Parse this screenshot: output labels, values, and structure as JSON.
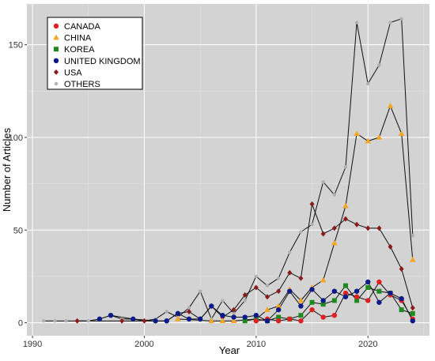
{
  "chart_data": {
    "type": "line",
    "title": "",
    "xlabel": "Year",
    "ylabel": "Number of Articles",
    "xlim": [
      1989.5,
      2025.5
    ],
    "ylim": [
      -7,
      172
    ],
    "x_ticks": [
      1990,
      2000,
      2010,
      2020
    ],
    "y_ticks": [
      0,
      50,
      100,
      150
    ],
    "grid": true,
    "legend_position": "top-left",
    "series": [
      {
        "name": "OTHERS",
        "color": "#b0b0b0",
        "marker": "circle-small",
        "x": [
          1991,
          1992,
          1993,
          1994,
          1995,
          1996,
          1997,
          1998,
          1999,
          2000,
          2001,
          2002,
          2003,
          2004,
          2005,
          2006,
          2007,
          2008,
          2009,
          2010,
          2011,
          2012,
          2013,
          2014,
          2015,
          2016,
          2017,
          2018,
          2019,
          2020,
          2021,
          2022,
          2023,
          2024
        ],
        "values": [
          1,
          1,
          1,
          1,
          1,
          2,
          4,
          2,
          2,
          1,
          2,
          6,
          3,
          8,
          17,
          2,
          12,
          5,
          12,
          25,
          20,
          24,
          38,
          49,
          53,
          76,
          69,
          84,
          162,
          129,
          139,
          162,
          164,
          47
        ]
      },
      {
        "name": "USA",
        "color": "#8b1a1a",
        "marker": "diamond",
        "x": [
          1994,
          1998,
          2000,
          2002,
          2003,
          2004,
          2005,
          2006,
          2007,
          2008,
          2009,
          2010,
          2011,
          2012,
          2013,
          2014,
          2015,
          2016,
          2017,
          2018,
          2019,
          2020,
          2021,
          2022,
          2023,
          2024
        ],
        "values": [
          1,
          1,
          1,
          1,
          5,
          6,
          2,
          9,
          3,
          7,
          15,
          19,
          14,
          17,
          27,
          24,
          64,
          48,
          51,
          56,
          53,
          51,
          51,
          41,
          29,
          8
        ]
      },
      {
        "name": "CHINA",
        "color": "#f5a623",
        "marker": "triangle",
        "x": [
          2003,
          2006,
          2007,
          2008,
          2010,
          2011,
          2012,
          2013,
          2014,
          2015,
          2016,
          2017,
          2018,
          2019,
          2020,
          2021,
          2022,
          2023,
          2024
        ],
        "values": [
          2,
          1,
          1,
          1,
          2,
          7,
          9,
          18,
          12,
          19,
          23,
          43,
          63,
          102,
          98,
          100,
          117,
          102,
          34
        ]
      },
      {
        "name": "KOREA",
        "color": "#1e8a1e",
        "marker": "square",
        "x": [
          2009,
          2010,
          2011,
          2012,
          2013,
          2014,
          2015,
          2016,
          2017,
          2018,
          2019,
          2020,
          2021,
          2022,
          2023,
          2024
        ],
        "values": [
          1,
          2,
          1,
          3,
          2,
          4,
          11,
          10,
          12,
          20,
          12,
          19,
          17,
          16,
          7,
          5
        ]
      },
      {
        "name": "CANADA",
        "color": "#e02020",
        "marker": "circle",
        "x": [
          2010,
          2011,
          2012,
          2013,
          2014,
          2015,
          2016,
          2017,
          2018,
          2019,
          2020,
          2021,
          2022,
          2023,
          2024
        ],
        "values": [
          1,
          2,
          1,
          2,
          1,
          7,
          3,
          4,
          16,
          14,
          12,
          22,
          15,
          12,
          2
        ]
      },
      {
        "name": "UNITED KINGDOM",
        "color": "#0a1a8a",
        "marker": "circle",
        "x": [
          1996,
          1997,
          1999,
          2001,
          2002,
          2003,
          2004,
          2005,
          2006,
          2007,
          2008,
          2009,
          2010,
          2011,
          2012,
          2013,
          2014,
          2015,
          2016,
          2017,
          2018,
          2019,
          2020,
          2021,
          2022,
          2023,
          2024
        ],
        "values": [
          2,
          4,
          2,
          1,
          1,
          5,
          2,
          2,
          9,
          4,
          3,
          3,
          4,
          1,
          7,
          17,
          9,
          18,
          12,
          17,
          14,
          17,
          22,
          11,
          16,
          13,
          1
        ]
      }
    ],
    "legend": [
      {
        "name": "CANADA",
        "color": "#e02020",
        "marker": "circle"
      },
      {
        "name": "CHINA",
        "color": "#f5a623",
        "marker": "triangle"
      },
      {
        "name": "KOREA",
        "color": "#1e8a1e",
        "marker": "square"
      },
      {
        "name": "UNITED KINGDOM",
        "color": "#0a1a8a",
        "marker": "circle"
      },
      {
        "name": "USA",
        "color": "#8b1a1a",
        "marker": "diamond"
      },
      {
        "name": "OTHERS",
        "color": "#b0b0b0",
        "marker": "circle-small"
      }
    ]
  }
}
